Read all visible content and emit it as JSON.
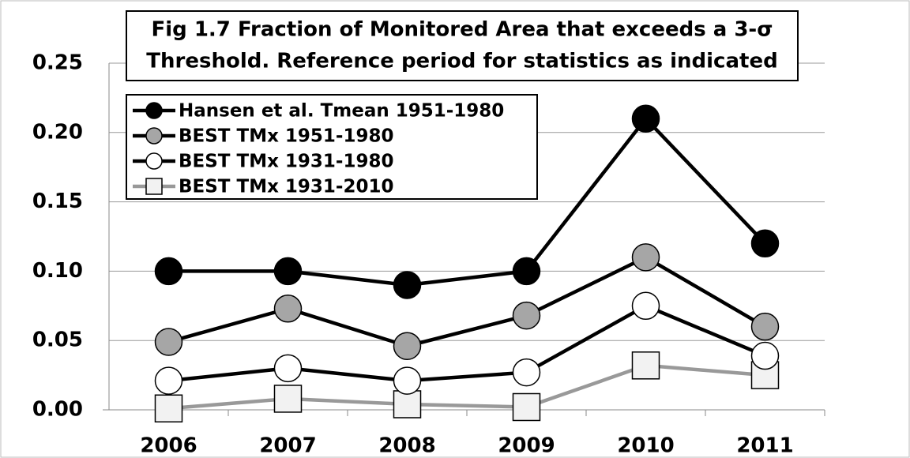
{
  "chart_data": {
    "type": "line",
    "title": [
      "Fig 1.7 Fraction of Monitored Area that exceeds a 3-σ",
      "Threshold. Reference period for statistics as indicated"
    ],
    "categories": [
      "2006",
      "2007",
      "2008",
      "2009",
      "2010",
      "2011"
    ],
    "series": [
      {
        "name": "Hansen et al. Tmean 1951-1980",
        "color": "#000000",
        "line_color": "#000000",
        "marker": "circle",
        "values": [
          0.1,
          0.1,
          0.09,
          0.1,
          0.21,
          0.12
        ]
      },
      {
        "name": "BEST TMx 1951-1980",
        "color": "#a6a6a6",
        "line_color": "#000000",
        "marker": "circle",
        "values": [
          0.049,
          0.073,
          0.046,
          0.068,
          0.11,
          0.06
        ]
      },
      {
        "name": "BEST TMx 1931-1980",
        "color": "#ffffff",
        "line_color": "#000000",
        "marker": "circle",
        "values": [
          0.021,
          0.03,
          0.021,
          0.027,
          0.075,
          0.039
        ]
      },
      {
        "name": "BEST TMx 1931-2010",
        "color": "#f2f2f2",
        "line_color": "#999999",
        "marker": "square",
        "values": [
          0.001,
          0.008,
          0.004,
          0.002,
          0.032,
          0.025
        ]
      }
    ],
    "ylim": [
      0,
      0.25
    ],
    "yticks": [
      {
        "value": 0,
        "label": "0.00"
      },
      0.05,
      {
        "value": 0.1,
        "label": "0.10"
      },
      0.15,
      {
        "value": 0.2,
        "label": "0.20"
      },
      0.25
    ],
    "grid": true
  }
}
